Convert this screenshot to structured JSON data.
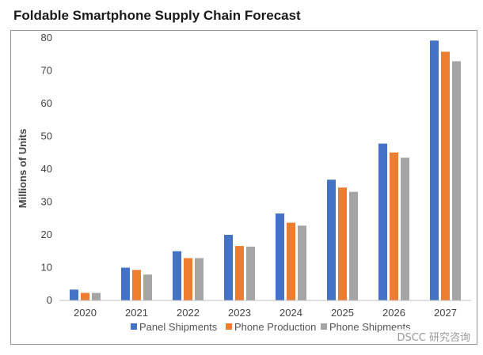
{
  "page_title": "Foldable Smartphone Supply Chain Forecast",
  "watermark": "DSCC 研究咨询",
  "chart_data": {
    "type": "bar",
    "title": "Foldable Smartphone Supply Chain Forecast",
    "xlabel": "",
    "ylabel": "Millions of Units",
    "ylim": [
      0,
      80
    ],
    "yticks": [
      0,
      10,
      20,
      30,
      40,
      50,
      60,
      70,
      80
    ],
    "grid": false,
    "legend_position": "bottom",
    "categories": [
      "2020",
      "2021",
      "2022",
      "2023",
      "2024",
      "2025",
      "2026",
      "2027"
    ],
    "series": [
      {
        "name": "Panel Shipments",
        "color": "#4472C4",
        "values": [
          3.3,
          10,
          15,
          20,
          26.5,
          36.8,
          47.8,
          79.2
        ]
      },
      {
        "name": "Phone Production",
        "color": "#ED7D31",
        "values": [
          2.3,
          9.3,
          12.9,
          16.6,
          23.7,
          34.4,
          45.1,
          75.8
        ]
      },
      {
        "name": "Phone Shipments",
        "color": "#A5A5A5",
        "values": [
          2.3,
          7.9,
          12.9,
          16.4,
          22.8,
          33.1,
          43.5,
          72.9
        ]
      }
    ]
  }
}
